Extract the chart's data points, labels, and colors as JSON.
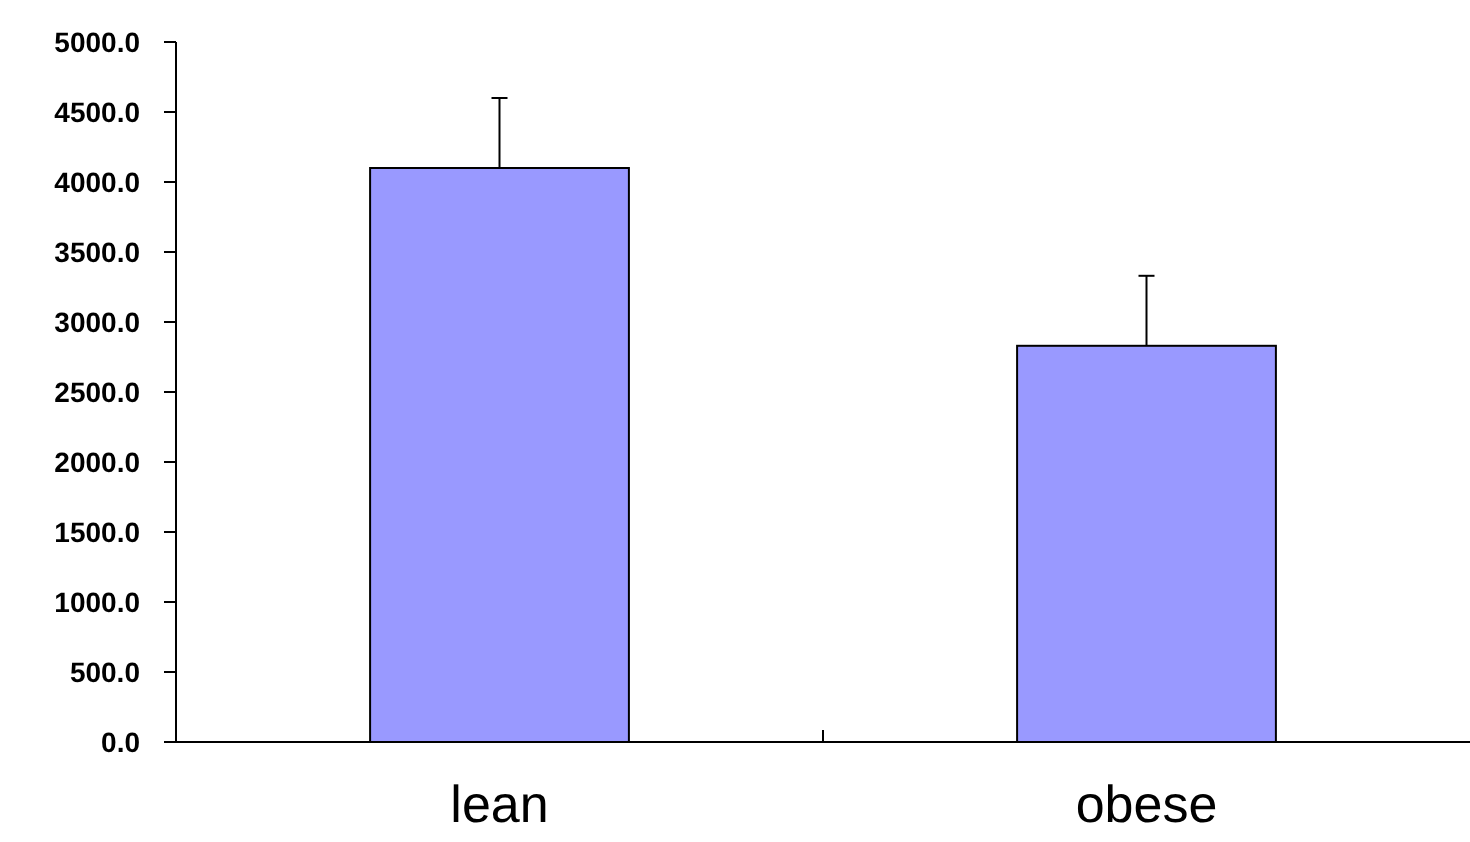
{
  "chart_data": {
    "type": "bar",
    "categories": [
      "lean",
      "obese"
    ],
    "values": [
      4100,
      2830
    ],
    "errors": [
      500,
      500
    ],
    "color": "#9999ff",
    "ylim": [
      0,
      5000
    ],
    "yticks": [
      {
        "value": 0,
        "label": "0.0"
      },
      {
        "value": 500,
        "label": "500.0"
      },
      {
        "value": 1000,
        "label": "1000.0"
      },
      {
        "value": 1500,
        "label": "1500.0"
      },
      {
        "value": 2000,
        "label": "2000.0"
      },
      {
        "value": 2500,
        "label": "2500.0"
      },
      {
        "value": 3000,
        "label": "3000.0"
      },
      {
        "value": 3500,
        "label": "3500.0"
      },
      {
        "value": 4000,
        "label": "4000.0"
      },
      {
        "value": 4500,
        "label": "4500.0"
      },
      {
        "value": 5000,
        "label": "5000.0"
      }
    ],
    "grid": false
  }
}
